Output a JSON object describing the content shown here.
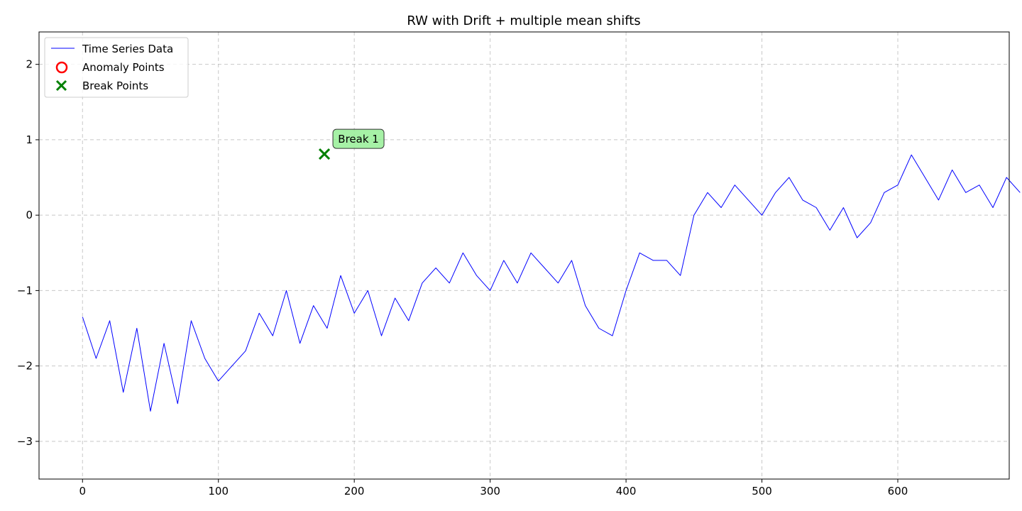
{
  "chart_data": {
    "type": "line",
    "title": "RW with Drift + multiple mean shifts",
    "xlabel": "",
    "ylabel": "",
    "xlim": [
      -32,
      682
    ],
    "ylim": [
      -3.5,
      2.43
    ],
    "xticks": [
      0,
      100,
      200,
      300,
      400,
      500,
      600
    ],
    "yticks": [
      -3,
      -2,
      -1,
      0,
      1,
      2
    ],
    "ytick_labels": [
      "−3",
      "−2",
      "−1",
      "0",
      "1",
      "2"
    ],
    "grid": true,
    "legend_position": "top-left",
    "legend": [
      {
        "label": "Time Series Data",
        "marker": "line",
        "color": "#0000ff"
      },
      {
        "label": "Anomaly Points",
        "marker": "circle",
        "color": "#ff0000"
      },
      {
        "label": "Break Points",
        "marker": "x",
        "color": "#008000"
      }
    ],
    "series": [
      {
        "name": "Time Series Data",
        "color": "#0000ff",
        "x_start": 0,
        "x_step": 10,
        "values": [
          -1.35,
          -1.9,
          -1.4,
          -2.35,
          -1.5,
          -2.6,
          -1.7,
          -2.5,
          -1.4,
          -1.9,
          -2.2,
          -2.0,
          -1.8,
          -1.3,
          -1.6,
          -1.0,
          -1.7,
          -1.2,
          -1.5,
          -0.8,
          -1.3,
          -1.0,
          -1.6,
          -1.1,
          -1.4,
          -0.9,
          -0.7,
          -0.9,
          -0.5,
          -0.8,
          -1.0,
          -0.6,
          -0.9,
          -0.5,
          -0.7,
          -0.9,
          -0.6,
          -1.2,
          -1.5,
          -1.6,
          -1.0,
          -0.5,
          -0.6,
          -0.6,
          -0.8,
          0.0,
          0.3,
          0.1,
          0.4,
          0.2,
          0.0,
          0.3,
          0.5,
          0.2,
          0.1,
          -0.2,
          0.1,
          -0.3,
          -0.1,
          0.3,
          0.4,
          0.8,
          0.5,
          0.2,
          0.6,
          0.3,
          0.4,
          0.1,
          0.5,
          0.3
        ]
      }
    ],
    "break_points": [
      {
        "x": 178,
        "y": 0.81,
        "label": "Break 1"
      }
    ]
  }
}
